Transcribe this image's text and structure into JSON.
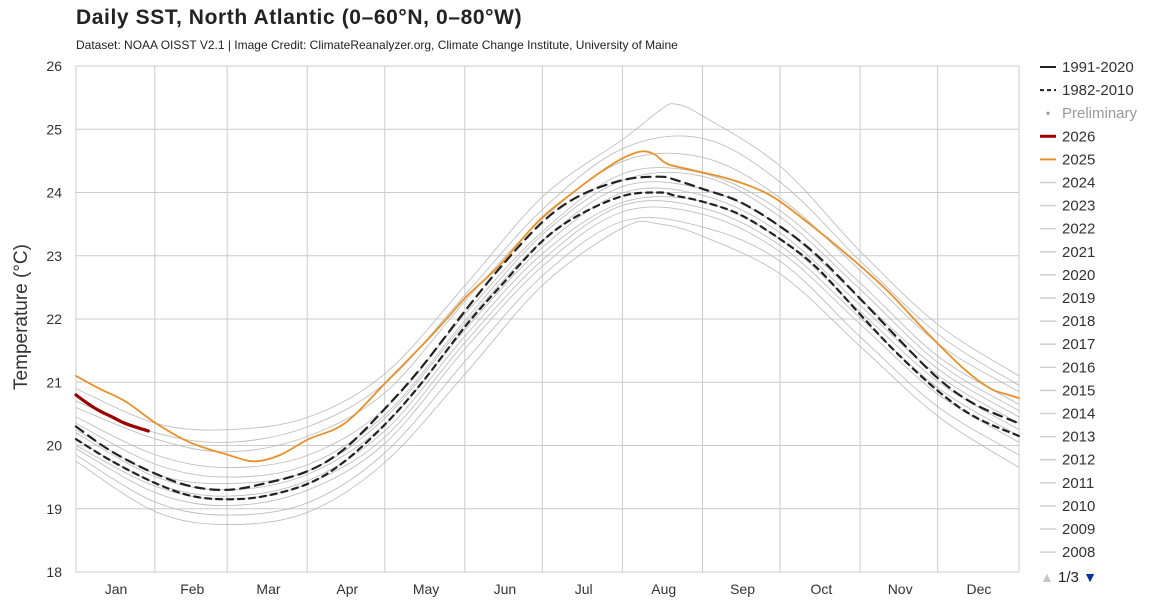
{
  "title": "Daily SST, North Atlantic (0–60°N, 0–80°W)",
  "subtitle": "Dataset: NOAA OISST V2.1 | Image Credit: ClimateReanalyzer.org, Climate Change Institute, University of Maine",
  "pager": {
    "text": "1/3",
    "prev_icon": "▲",
    "next_icon": "▼"
  },
  "colors": {
    "mean_1991": "#222222",
    "mean_1982": "#222222",
    "y2026": "#990000",
    "y2025": "#e8912b",
    "past_years": "#b4b4b4",
    "grid": "#cccccc"
  },
  "chart_data": {
    "type": "line",
    "ylabel": "Temperature (°C)",
    "ylim": [
      18,
      26
    ],
    "yticks": [
      18,
      19,
      20,
      21,
      22,
      23,
      24,
      25,
      26
    ],
    "xlim": [
      1,
      366
    ],
    "months": [
      "Jan",
      "Feb",
      "Mar",
      "Apr",
      "May",
      "Jun",
      "Jul",
      "Aug",
      "Sep",
      "Oct",
      "Nov",
      "Dec"
    ],
    "grid": true,
    "legend_position": "right",
    "legend": [
      {
        "label": "1991-2020",
        "style": "solid-black"
      },
      {
        "label": "1982-2010",
        "style": "dashed-black"
      },
      {
        "label": "Preliminary",
        "style": "dot"
      },
      {
        "label": "2026",
        "style": "darkred"
      },
      {
        "label": "2025",
        "style": "orange"
      },
      {
        "label": "2024",
        "style": "gray"
      },
      {
        "label": "2023",
        "style": "gray"
      },
      {
        "label": "2022",
        "style": "gray"
      },
      {
        "label": "2021",
        "style": "gray"
      },
      {
        "label": "2020",
        "style": "gray"
      },
      {
        "label": "2019",
        "style": "gray"
      },
      {
        "label": "2018",
        "style": "gray"
      },
      {
        "label": "2017",
        "style": "gray"
      },
      {
        "label": "2016",
        "style": "gray"
      },
      {
        "label": "2015",
        "style": "gray"
      },
      {
        "label": "2014",
        "style": "gray"
      },
      {
        "label": "2013",
        "style": "gray"
      },
      {
        "label": "2012",
        "style": "gray"
      },
      {
        "label": "2011",
        "style": "gray"
      },
      {
        "label": "2010",
        "style": "gray"
      },
      {
        "label": "2009",
        "style": "gray"
      },
      {
        "label": "2008",
        "style": "gray"
      }
    ],
    "series": [
      {
        "name": "1991-2020",
        "x": [
          1,
          15,
          32,
          46,
          60,
          74,
          91,
          105,
          121,
          135,
          152,
          166,
          182,
          196,
          213,
          227,
          233,
          244,
          258,
          274,
          288,
          305,
          319,
          335,
          349,
          366
        ],
        "values": [
          20.3,
          19.9,
          19.55,
          19.35,
          19.3,
          19.4,
          19.6,
          19.95,
          20.6,
          21.25,
          22.15,
          22.85,
          23.55,
          23.95,
          24.2,
          24.25,
          24.2,
          24.05,
          23.85,
          23.45,
          23.0,
          22.3,
          21.7,
          21.05,
          20.65,
          20.35
        ]
      },
      {
        "name": "1982-2010",
        "x": [
          1,
          15,
          32,
          46,
          60,
          74,
          91,
          105,
          121,
          135,
          152,
          166,
          182,
          196,
          213,
          227,
          233,
          244,
          258,
          274,
          288,
          305,
          319,
          335,
          349,
          366
        ],
        "values": [
          20.1,
          19.75,
          19.4,
          19.2,
          19.15,
          19.2,
          19.4,
          19.75,
          20.35,
          21.0,
          21.9,
          22.55,
          23.25,
          23.65,
          23.95,
          24.0,
          23.95,
          23.85,
          23.65,
          23.25,
          22.8,
          22.05,
          21.45,
          20.85,
          20.45,
          20.15
        ]
      },
      {
        "name": "2026",
        "x": [
          1,
          5,
          10,
          15,
          20,
          25,
          29
        ],
        "values": [
          20.8,
          20.68,
          20.55,
          20.45,
          20.35,
          20.28,
          20.23
        ]
      },
      {
        "name": "2025",
        "x": [
          1,
          10,
          20,
          32,
          45,
          60,
          70,
          80,
          91,
          105,
          121,
          140,
          152,
          165,
          180,
          195,
          205,
          213,
          220,
          225,
          230,
          240,
          255,
          270,
          285,
          300,
          315,
          330,
          345,
          355,
          362,
          366
        ],
        "values": [
          21.1,
          20.9,
          20.7,
          20.35,
          20.05,
          19.85,
          19.75,
          19.85,
          20.1,
          20.35,
          21.0,
          21.8,
          22.35,
          22.85,
          23.55,
          24.05,
          24.35,
          24.55,
          24.65,
          24.6,
          24.45,
          24.35,
          24.2,
          23.95,
          23.5,
          23.0,
          22.45,
          21.8,
          21.2,
          20.9,
          20.8,
          20.75
        ]
      },
      {
        "name": "hi-envelope",
        "x": [
          1,
          32,
          60,
          91,
          121,
          152,
          182,
          213,
          227,
          233,
          244,
          274,
          305,
          335,
          366
        ],
        "values": [
          20.9,
          20.35,
          20.25,
          20.45,
          21.15,
          22.55,
          23.95,
          24.85,
          25.3,
          25.4,
          25.2,
          24.4,
          23.05,
          21.9,
          21.1
        ]
      },
      {
        "name": "lo-envelope",
        "x": [
          1,
          32,
          60,
          91,
          121,
          152,
          182,
          213,
          227,
          244,
          274,
          305,
          335,
          366
        ],
        "values": [
          19.75,
          18.95,
          18.75,
          18.95,
          19.75,
          21.15,
          22.55,
          23.45,
          23.5,
          23.3,
          22.7,
          21.55,
          20.45,
          19.65
        ]
      },
      {
        "name": "g1",
        "x": [
          1,
          32,
          60,
          91,
          121,
          152,
          182,
          213,
          244,
          274,
          305,
          335,
          366
        ],
        "values": [
          20.6,
          20.1,
          19.9,
          20.15,
          20.85,
          22.3,
          23.6,
          24.5,
          24.55,
          23.9,
          22.75,
          21.6,
          20.85
        ]
      },
      {
        "name": "g2",
        "x": [
          1,
          32,
          60,
          91,
          121,
          152,
          182,
          213,
          244,
          274,
          305,
          335,
          366
        ],
        "values": [
          20.45,
          19.85,
          19.65,
          19.85,
          20.6,
          22.1,
          23.4,
          24.3,
          24.3,
          23.7,
          22.55,
          21.4,
          20.65
        ]
      },
      {
        "name": "g3",
        "x": [
          1,
          32,
          60,
          91,
          121,
          152,
          182,
          213,
          244,
          274,
          305,
          335,
          366
        ],
        "values": [
          20.25,
          19.55,
          19.4,
          19.6,
          20.45,
          21.95,
          23.25,
          24.1,
          24.05,
          23.45,
          22.3,
          21.2,
          20.45
        ]
      },
      {
        "name": "g4",
        "x": [
          1,
          32,
          60,
          91,
          121,
          152,
          182,
          213,
          244,
          274,
          305,
          335,
          366
        ],
        "values": [
          20.1,
          19.4,
          19.2,
          19.45,
          20.25,
          21.75,
          23.05,
          23.85,
          23.85,
          23.25,
          22.1,
          21.0,
          20.25
        ]
      },
      {
        "name": "g5",
        "x": [
          1,
          32,
          60,
          91,
          121,
          152,
          182,
          213,
          244,
          274,
          305,
          335,
          366
        ],
        "values": [
          19.95,
          19.25,
          19.05,
          19.3,
          20.05,
          21.55,
          22.85,
          23.7,
          23.65,
          23.05,
          21.9,
          20.8,
          20.05
        ]
      },
      {
        "name": "g6",
        "x": [
          1,
          32,
          60,
          91,
          121,
          152,
          182,
          213,
          244,
          274,
          305,
          335,
          366
        ],
        "values": [
          19.85,
          19.1,
          18.9,
          19.1,
          19.9,
          21.35,
          22.7,
          23.55,
          23.45,
          22.9,
          21.7,
          20.6,
          19.85
        ]
      },
      {
        "name": "g7",
        "x": [
          1,
          32,
          60,
          91,
          121,
          152,
          182,
          213,
          244,
          274,
          305,
          335,
          366
        ],
        "values": [
          20.35,
          19.7,
          19.5,
          19.7,
          20.5,
          22.0,
          23.35,
          24.2,
          24.25,
          23.6,
          22.45,
          21.3,
          20.55
        ]
      },
      {
        "name": "g8",
        "x": [
          1,
          32,
          60,
          91,
          121,
          152,
          182,
          213,
          244,
          274,
          305,
          335,
          366
        ],
        "values": [
          20.0,
          19.35,
          19.15,
          19.4,
          20.15,
          21.65,
          22.95,
          23.8,
          23.75,
          23.15,
          22.0,
          20.9,
          20.15
        ]
      },
      {
        "name": "g9",
        "x": [
          1,
          32,
          60,
          91,
          121,
          152,
          182,
          213,
          244,
          274,
          305,
          335,
          366
        ],
        "values": [
          20.7,
          20.2,
          20.05,
          20.3,
          21.0,
          22.4,
          23.75,
          24.7,
          24.85,
          24.15,
          22.9,
          21.75,
          20.95
        ]
      },
      {
        "name": "g10",
        "x": [
          1,
          32,
          60,
          91,
          121,
          152,
          182,
          213,
          244,
          274,
          305,
          335,
          366
        ],
        "values": [
          20.2,
          19.5,
          19.3,
          19.55,
          20.35,
          21.85,
          23.15,
          24.0,
          23.95,
          23.35,
          22.2,
          21.1,
          20.35
        ]
      }
    ]
  }
}
